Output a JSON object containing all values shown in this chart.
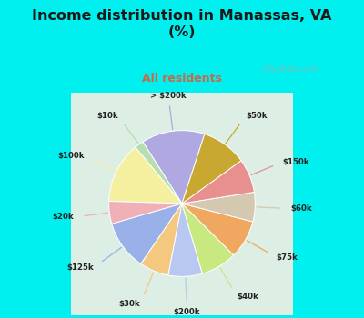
{
  "title": "Income distribution in Manassas, VA\n(%)",
  "subtitle": "All residents",
  "title_color": "#1a1a1a",
  "subtitle_color": "#cc6644",
  "bg_cyan": "#00f0f0",
  "bg_chart": "#e0f0e8",
  "watermark": "City-Data.com",
  "labels": [
    "> $200k",
    "$10k",
    "$100k",
    "$20k",
    "$125k",
    "$30k",
    "$200k",
    "$40k",
    "$75k",
    "$60k",
    "$150k",
    "$50k"
  ],
  "values": [
    14.0,
    2.0,
    13.5,
    5.0,
    11.0,
    6.5,
    7.5,
    8.0,
    8.5,
    6.5,
    7.5,
    10.0
  ],
  "colors": [
    "#b0a8e0",
    "#b8ddb0",
    "#f5f0a0",
    "#f0b0b8",
    "#9ab0e8",
    "#f5c880",
    "#b8c8f0",
    "#c8e880",
    "#f0a860",
    "#d4c8b0",
    "#e89090",
    "#c8a830"
  ],
  "startangle": 72,
  "figsize": [
    4.0,
    3.5
  ],
  "dpi": 100
}
